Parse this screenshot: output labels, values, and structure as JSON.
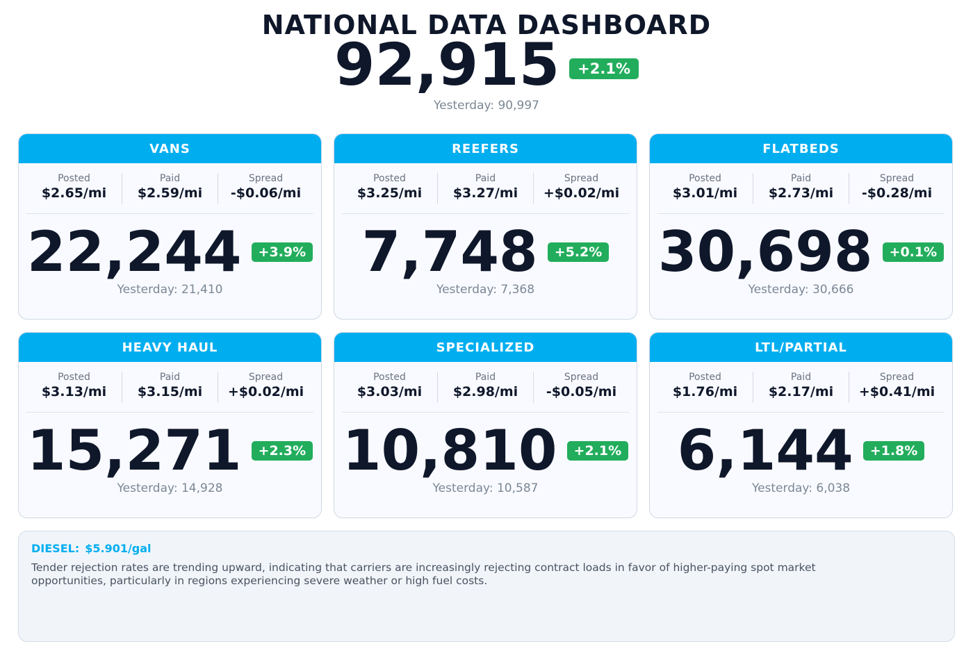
{
  "header": {
    "title": "NATIONAL DATA DASHBOARD",
    "total": "92,915",
    "change": "+2.1%",
    "yesterday": "Yesterday: 90,997"
  },
  "labels": {
    "posted": "Posted",
    "paid": "Paid",
    "spread": "Spread"
  },
  "cards": [
    {
      "name": "VANS",
      "posted": "$2.65/mi",
      "paid": "$2.59/mi",
      "spread": "-$0.06/mi",
      "value": "22,244",
      "change": "+3.9%",
      "yesterday": "Yesterday: 21,410"
    },
    {
      "name": "REEFERS",
      "posted": "$3.25/mi",
      "paid": "$3.27/mi",
      "spread": "+$0.02/mi",
      "value": "7,748",
      "change": "+5.2%",
      "yesterday": "Yesterday: 7,368"
    },
    {
      "name": "FLATBEDS",
      "posted": "$3.01/mi",
      "paid": "$2.73/mi",
      "spread": "-$0.28/mi",
      "value": "30,698",
      "change": "+0.1%",
      "yesterday": "Yesterday: 30,666"
    },
    {
      "name": "HEAVY HAUL",
      "posted": "$3.13/mi",
      "paid": "$3.15/mi",
      "spread": "+$0.02/mi",
      "value": "15,271",
      "change": "+2.3%",
      "yesterday": "Yesterday: 14,928"
    },
    {
      "name": "SPECIALIZED",
      "posted": "$3.03/mi",
      "paid": "$2.98/mi",
      "spread": "-$0.05/mi",
      "value": "10,810",
      "change": "+2.1%",
      "yesterday": "Yesterday: 10,587"
    },
    {
      "name": "LTL/PARTIAL",
      "posted": "$1.76/mi",
      "paid": "$2.17/mi",
      "spread": "+$0.41/mi",
      "value": "6,144",
      "change": "+1.8%",
      "yesterday": "Yesterday: 6,038"
    }
  ],
  "footer": {
    "diesel_label": "DIESEL:",
    "diesel_value": "$5.901/gal",
    "note": "Tender rejection rates are trending upward, indicating that carriers are increasingly rejecting contract loads in favor of higher-paying spot market opportunities, particularly in regions experiencing severe weather or high fuel costs."
  },
  "colors": {
    "header_accent": "#00aef0",
    "positive_badge": "#22ad5c",
    "text_dark": "#0f172a"
  }
}
